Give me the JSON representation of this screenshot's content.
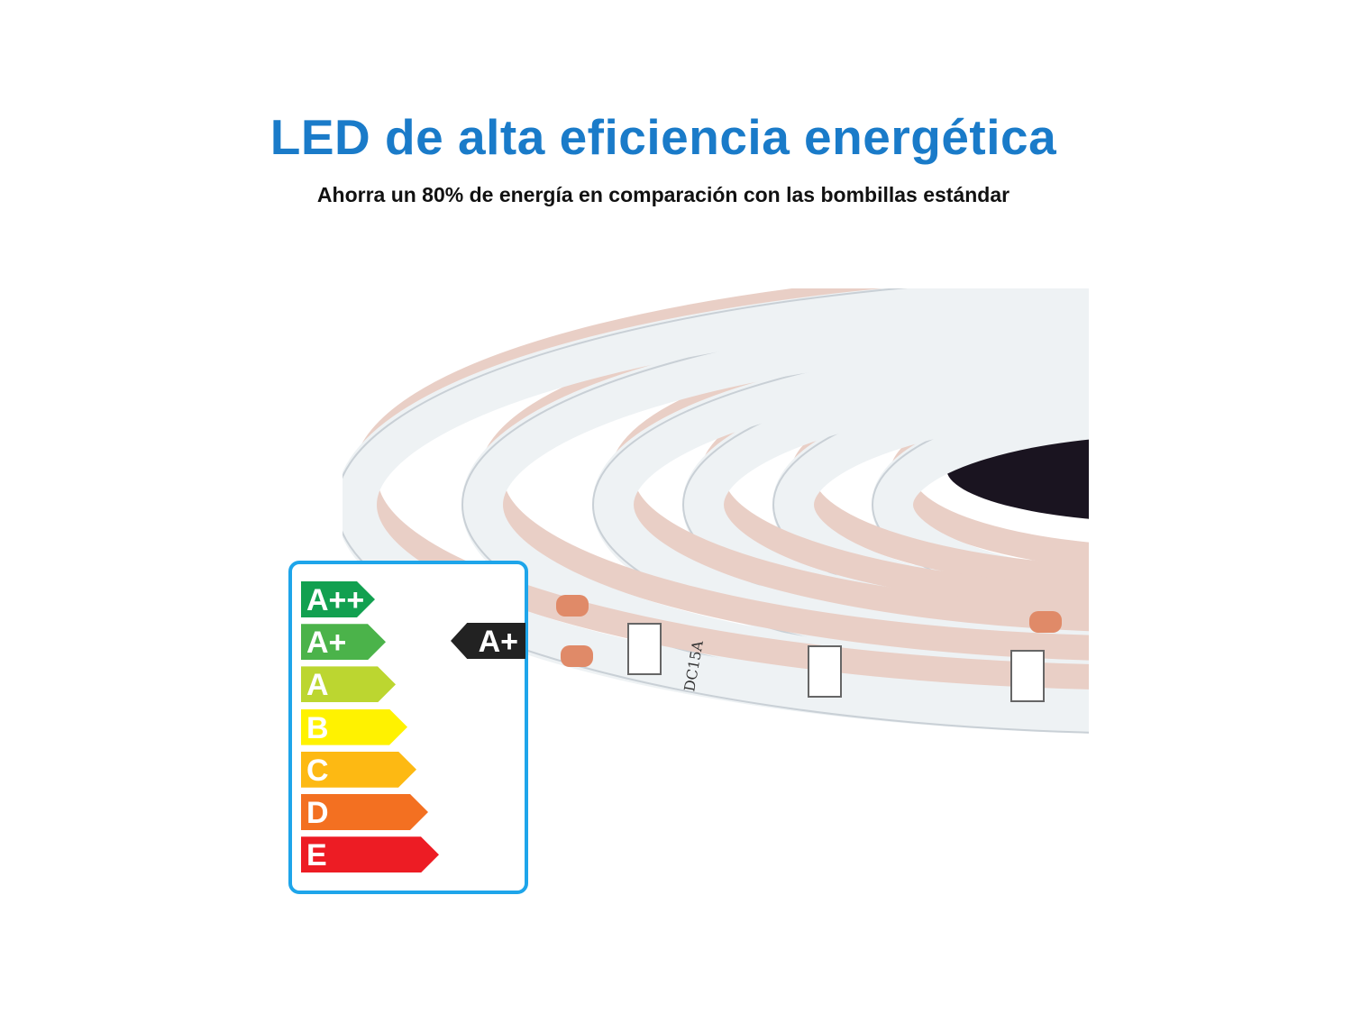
{
  "header": {
    "title": "LED de alta eficiencia energética",
    "subtitle": "Ahorra un 80% de energía en comparación con las bombillas estándar"
  },
  "colors": {
    "title": "#1a7bc9",
    "label_border": "#1ea5ea"
  },
  "energy_label": {
    "classes": [
      {
        "label": "A++",
        "color": "#12a050"
      },
      {
        "label": "A+",
        "color": "#4bb34a"
      },
      {
        "label": "A",
        "color": "#bcd630"
      },
      {
        "label": "B",
        "color": "#fff200"
      },
      {
        "label": "C",
        "color": "#fdb913"
      },
      {
        "label": "D",
        "color": "#f37021"
      },
      {
        "label": "E",
        "color": "#ed1c24"
      }
    ],
    "rating": "A+"
  },
  "strip_markings": {
    "text": "DC15A"
  }
}
